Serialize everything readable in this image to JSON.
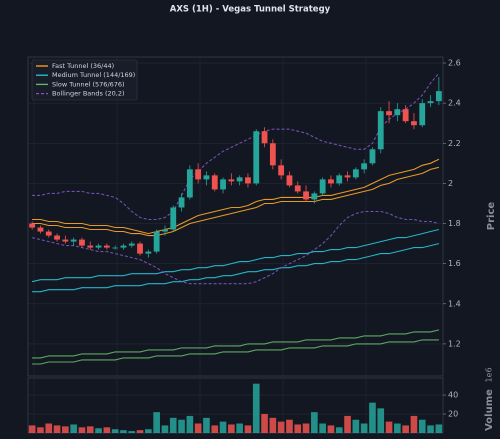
{
  "chart_data": {
    "type": "candlestick",
    "title": "AXS (1H) - Vegas Tunnel Strategy",
    "ylabel": "Price",
    "ylim": [
      1.04,
      2.63
    ],
    "yticks": [
      1.2,
      1.4,
      1.6,
      1.8,
      2.0,
      2.2,
      2.4,
      2.6
    ],
    "grid": true,
    "legend": "upper left",
    "up_color": "#26a69a",
    "down_color": "#ef5350",
    "ohlc": {
      "open": [
        1.8,
        1.78,
        1.76,
        1.74,
        1.72,
        1.71,
        1.72,
        1.69,
        1.68,
        1.69,
        1.68,
        1.68,
        1.69,
        1.7,
        1.65,
        1.66,
        1.76,
        1.77,
        1.88,
        1.93,
        2.07,
        2.02,
        2.04,
        1.97,
        2.02,
        2.01,
        2.03,
        2.0,
        2.26,
        2.2,
        2.09,
        2.04,
        1.99,
        1.96,
        1.92,
        1.95,
        2.02,
        2.0,
        2.04,
        2.03,
        2.07,
        2.1,
        2.17,
        2.36,
        2.34,
        2.37,
        2.31,
        2.29,
        2.4,
        2.41
      ],
      "high": [
        1.81,
        1.79,
        1.77,
        1.75,
        1.74,
        1.73,
        1.73,
        1.71,
        1.7,
        1.7,
        1.69,
        1.7,
        1.71,
        1.71,
        1.67,
        1.77,
        1.79,
        1.89,
        1.95,
        2.09,
        2.1,
        2.06,
        2.05,
        2.03,
        2.05,
        2.04,
        2.05,
        2.27,
        2.28,
        2.22,
        2.12,
        2.06,
        2.01,
        1.99,
        1.96,
        2.03,
        2.04,
        2.05,
        2.06,
        2.08,
        2.12,
        2.18,
        2.38,
        2.41,
        2.4,
        2.39,
        2.35,
        2.42,
        2.44,
        2.53
      ],
      "low": [
        1.77,
        1.75,
        1.73,
        1.71,
        1.7,
        1.69,
        1.68,
        1.67,
        1.67,
        1.67,
        1.67,
        1.67,
        1.68,
        1.64,
        1.63,
        1.65,
        1.74,
        1.76,
        1.86,
        1.92,
        2.0,
        1.99,
        1.96,
        1.95,
        1.99,
        1.99,
        1.98,
        1.99,
        2.18,
        2.07,
        2.02,
        1.98,
        1.95,
        1.91,
        1.9,
        1.94,
        1.98,
        1.99,
        2.01,
        2.02,
        2.05,
        2.09,
        2.15,
        2.3,
        2.31,
        2.3,
        2.27,
        2.28,
        2.38,
        2.39
      ],
      "close": [
        1.78,
        1.76,
        1.74,
        1.72,
        1.71,
        1.72,
        1.69,
        1.68,
        1.69,
        1.68,
        1.68,
        1.69,
        1.7,
        1.65,
        1.66,
        1.76,
        1.77,
        1.88,
        1.93,
        2.07,
        2.02,
        2.04,
        1.97,
        2.02,
        2.01,
        2.03,
        2.0,
        2.26,
        2.2,
        2.09,
        2.04,
        1.99,
        1.96,
        1.92,
        1.95,
        2.02,
        2.0,
        2.04,
        2.03,
        2.07,
        2.1,
        2.17,
        2.36,
        2.34,
        2.37,
        2.31,
        2.29,
        2.4,
        2.41,
        2.46
      ]
    },
    "series": [
      {
        "name": "Fast Tunnel (36/44)",
        "color": "#ffa726",
        "style": "solid",
        "upper": [
          1.82,
          1.82,
          1.81,
          1.81,
          1.8,
          1.8,
          1.8,
          1.79,
          1.79,
          1.79,
          1.78,
          1.78,
          1.77,
          1.76,
          1.75,
          1.76,
          1.77,
          1.78,
          1.8,
          1.82,
          1.84,
          1.85,
          1.86,
          1.87,
          1.88,
          1.88,
          1.89,
          1.91,
          1.92,
          1.92,
          1.93,
          1.93,
          1.93,
          1.93,
          1.93,
          1.94,
          1.94,
          1.95,
          1.96,
          1.97,
          1.98,
          2.0,
          2.02,
          2.04,
          2.05,
          2.06,
          2.07,
          2.09,
          2.1,
          2.12
        ],
        "lower": [
          1.8,
          1.8,
          1.79,
          1.79,
          1.78,
          1.78,
          1.78,
          1.77,
          1.77,
          1.77,
          1.76,
          1.76,
          1.75,
          1.75,
          1.74,
          1.74,
          1.75,
          1.76,
          1.78,
          1.8,
          1.81,
          1.82,
          1.83,
          1.84,
          1.85,
          1.86,
          1.87,
          1.88,
          1.9,
          1.9,
          1.91,
          1.91,
          1.91,
          1.91,
          1.91,
          1.92,
          1.92,
          1.93,
          1.94,
          1.95,
          1.96,
          1.97,
          1.99,
          2.0,
          2.02,
          2.03,
          2.04,
          2.05,
          2.07,
          2.08
        ]
      },
      {
        "name": "Medium Tunnel (144/169)",
        "color": "#26c6da",
        "style": "solid",
        "upper": [
          1.51,
          1.52,
          1.52,
          1.52,
          1.53,
          1.53,
          1.53,
          1.53,
          1.54,
          1.54,
          1.54,
          1.54,
          1.55,
          1.55,
          1.55,
          1.55,
          1.56,
          1.56,
          1.57,
          1.57,
          1.58,
          1.58,
          1.59,
          1.59,
          1.6,
          1.61,
          1.61,
          1.62,
          1.63,
          1.63,
          1.64,
          1.64,
          1.65,
          1.65,
          1.66,
          1.66,
          1.67,
          1.67,
          1.68,
          1.68,
          1.69,
          1.7,
          1.71,
          1.72,
          1.73,
          1.73,
          1.74,
          1.75,
          1.76,
          1.77
        ],
        "lower": [
          1.46,
          1.46,
          1.47,
          1.47,
          1.47,
          1.47,
          1.48,
          1.48,
          1.48,
          1.48,
          1.49,
          1.49,
          1.49,
          1.49,
          1.5,
          1.5,
          1.5,
          1.51,
          1.51,
          1.52,
          1.52,
          1.53,
          1.53,
          1.54,
          1.54,
          1.55,
          1.56,
          1.56,
          1.57,
          1.57,
          1.58,
          1.58,
          1.59,
          1.59,
          1.6,
          1.6,
          1.61,
          1.61,
          1.62,
          1.62,
          1.63,
          1.64,
          1.65,
          1.65,
          1.66,
          1.67,
          1.68,
          1.68,
          1.69,
          1.7
        ]
      },
      {
        "name": "Slow Tunnel (576/676)",
        "color": "#66bb6a",
        "style": "solid",
        "upper": [
          1.13,
          1.13,
          1.14,
          1.14,
          1.14,
          1.14,
          1.15,
          1.15,
          1.15,
          1.15,
          1.16,
          1.16,
          1.16,
          1.16,
          1.17,
          1.17,
          1.17,
          1.17,
          1.18,
          1.18,
          1.18,
          1.18,
          1.19,
          1.19,
          1.19,
          1.19,
          1.2,
          1.2,
          1.2,
          1.21,
          1.21,
          1.21,
          1.21,
          1.22,
          1.22,
          1.22,
          1.22,
          1.23,
          1.23,
          1.23,
          1.24,
          1.24,
          1.24,
          1.25,
          1.25,
          1.25,
          1.26,
          1.26,
          1.26,
          1.27
        ],
        "lower": [
          1.1,
          1.1,
          1.11,
          1.11,
          1.11,
          1.11,
          1.12,
          1.12,
          1.12,
          1.12,
          1.12,
          1.13,
          1.13,
          1.13,
          1.13,
          1.14,
          1.14,
          1.14,
          1.14,
          1.15,
          1.15,
          1.15,
          1.15,
          1.16,
          1.16,
          1.16,
          1.16,
          1.17,
          1.17,
          1.17,
          1.17,
          1.18,
          1.18,
          1.18,
          1.18,
          1.19,
          1.19,
          1.19,
          1.19,
          1.2,
          1.2,
          1.2,
          1.2,
          1.21,
          1.21,
          1.21,
          1.21,
          1.22,
          1.22,
          1.22
        ]
      },
      {
        "name": "Bollinger Bands (20,2)",
        "color": "#7e57c2",
        "style": "dashed",
        "upper": [
          1.94,
          1.94,
          1.95,
          1.95,
          1.96,
          1.96,
          1.96,
          1.95,
          1.95,
          1.94,
          1.93,
          1.9,
          1.86,
          1.83,
          1.82,
          1.82,
          1.83,
          1.86,
          1.94,
          2.02,
          2.06,
          2.1,
          2.13,
          2.16,
          2.18,
          2.2,
          2.22,
          2.24,
          2.26,
          2.27,
          2.27,
          2.27,
          2.26,
          2.25,
          2.23,
          2.21,
          2.2,
          2.19,
          2.18,
          2.17,
          2.17,
          2.2,
          2.28,
          2.32,
          2.35,
          2.37,
          2.4,
          2.44,
          2.5,
          2.55
        ],
        "lower": [
          1.73,
          1.72,
          1.71,
          1.7,
          1.69,
          1.69,
          1.68,
          1.67,
          1.66,
          1.66,
          1.65,
          1.64,
          1.63,
          1.62,
          1.6,
          1.58,
          1.55,
          1.53,
          1.51,
          1.5,
          1.5,
          1.5,
          1.5,
          1.5,
          1.5,
          1.5,
          1.5,
          1.51,
          1.53,
          1.55,
          1.58,
          1.6,
          1.62,
          1.64,
          1.67,
          1.7,
          1.74,
          1.79,
          1.83,
          1.85,
          1.86,
          1.86,
          1.86,
          1.85,
          1.83,
          1.82,
          1.82,
          1.81,
          1.81,
          1.8
        ]
      }
    ],
    "volume": {
      "label": "Volume",
      "offset_label": "1e6",
      "ylim": [
        0,
        58
      ],
      "yticks": [
        20,
        40
      ],
      "values": [
        8,
        6,
        10,
        8,
        7,
        9,
        6,
        7,
        5,
        6,
        4,
        3,
        2,
        3,
        4,
        22,
        8,
        16,
        14,
        18,
        10,
        16,
        8,
        12,
        9,
        10,
        8,
        52,
        20,
        16,
        12,
        14,
        9,
        10,
        22,
        10,
        8,
        6,
        18,
        14,
        10,
        32,
        26,
        12,
        10,
        8,
        18,
        14,
        8,
        9
      ]
    }
  }
}
